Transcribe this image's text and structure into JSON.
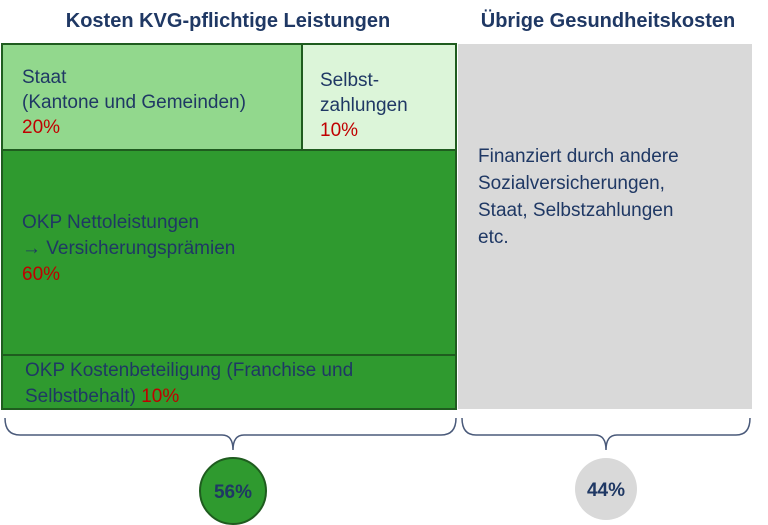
{
  "headings": {
    "left": "Kosten KVG-pflichtige Leistungen",
    "right": "Übrige Gesundheitskosten"
  },
  "boxes": [
    {
      "lines": [
        "Staat",
        "(Kantone und Gemeinden)"
      ],
      "share": "20%"
    },
    {
      "lines": [
        "Selbst-",
        "zahlungen"
      ],
      "share": "10%"
    },
    {
      "lines": [
        "OKP Nettoleistungen",
        "→ Versicherungsprämien"
      ],
      "share": "60%"
    },
    {
      "lines": [
        "OKP Kostenbeteiligung (Franchise und",
        "Selbstbehalt)"
      ],
      "share": "10%"
    },
    {
      "lines": [
        "Finanziert durch andere",
        "Sozialversicherungen,",
        "Staat, Selbstzahlungen",
        "etc."
      ]
    }
  ],
  "totals": {
    "left": "56%",
    "right": "44%"
  }
}
